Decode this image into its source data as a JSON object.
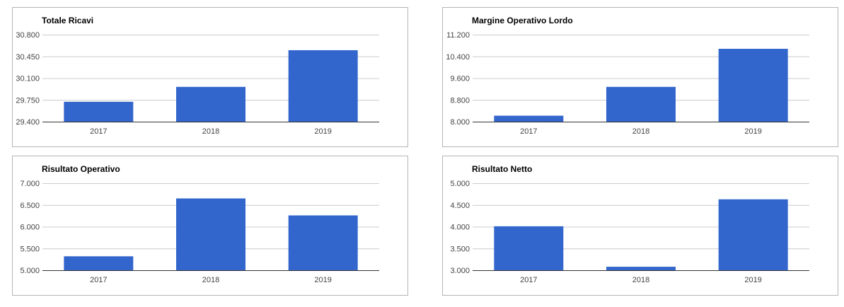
{
  "colors": {
    "bar": "#3366cc",
    "grid": "#cccccc",
    "axis": "#333333"
  },
  "chart_data": [
    {
      "type": "bar",
      "title": "Totale Ricavi",
      "categories": [
        "2017",
        "2018",
        "2019"
      ],
      "values": [
        29.72,
        29.96,
        30.55
      ],
      "yticks": [
        "30.800",
        "30.450",
        "30.100",
        "29.750",
        "29.400"
      ],
      "ylim": [
        29.4,
        30.8
      ],
      "grid": true
    },
    {
      "type": "bar",
      "title": "Margine Operativo Lordo",
      "categories": [
        "2017",
        "2018",
        "2019"
      ],
      "values": [
        8.22,
        9.28,
        10.68
      ],
      "yticks": [
        "11.200",
        "10.400",
        "9.600",
        "8.800",
        "8.000"
      ],
      "ylim": [
        8.0,
        11.2
      ],
      "grid": true
    },
    {
      "type": "bar",
      "title": "Risultato Operativo",
      "categories": [
        "2017",
        "2018",
        "2019"
      ],
      "values": [
        5.32,
        6.65,
        6.26
      ],
      "yticks": [
        "7.000",
        "6.500",
        "6.000",
        "5.500",
        "5.000"
      ],
      "ylim": [
        5.0,
        7.0
      ],
      "grid": true
    },
    {
      "type": "bar",
      "title": "Risultato Netto",
      "categories": [
        "2017",
        "2018",
        "2019"
      ],
      "values": [
        4.01,
        3.08,
        4.63
      ],
      "yticks": [
        "5.000",
        "4.500",
        "4.000",
        "3.500",
        "3.000"
      ],
      "ylim": [
        3.0,
        5.0
      ],
      "grid": true
    }
  ]
}
